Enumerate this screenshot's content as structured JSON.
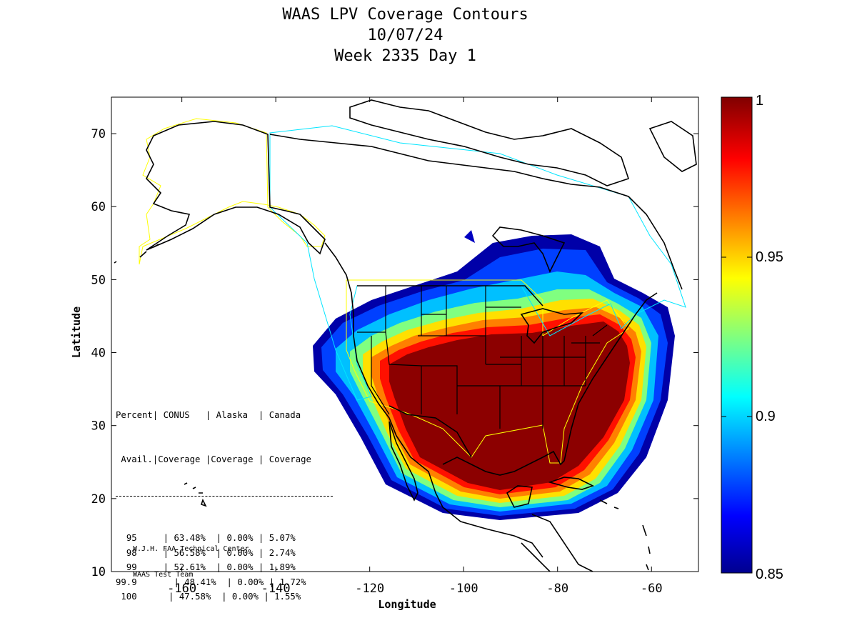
{
  "title": {
    "line1": "WAAS LPV Coverage Contours",
    "line2": "10/07/24",
    "line3": "Week 2335 Day 1"
  },
  "axes": {
    "xlabel": "Longitude",
    "ylabel": "Latitude",
    "xlim": [
      -175,
      -50
    ],
    "ylim": [
      10,
      75
    ],
    "xticks": [
      -160,
      -140,
      -120,
      -100,
      -80,
      -60
    ],
    "yticks": [
      10,
      20,
      30,
      40,
      50,
      60,
      70
    ]
  },
  "colorbar": {
    "min": 0.85,
    "max": 1,
    "tick_labels": [
      "1",
      "0.95",
      "0.9",
      "0.85"
    ],
    "colormap": "jet"
  },
  "stats_table": {
    "header1": "Percent| CONUS   | Alaska  | Canada",
    "header2": " Avail.|Coverage |Coverage | Coverage",
    "divider": "-----------------------------------------",
    "rows": [
      {
        "percent": "95",
        "conus": "63.48%",
        "alaska": "0.00%",
        "canada": "5.07%"
      },
      {
        "percent": "98",
        "conus": "56.58%",
        "alaska": "0.00%",
        "canada": "2.74%"
      },
      {
        "percent": "99",
        "conus": "52.61%",
        "alaska": "0.00%",
        "canada": "1.89%"
      },
      {
        "percent": "99.9",
        "conus": "48.41%",
        "alaska": "0.00%",
        "canada": "1.72%"
      },
      {
        "percent": "100",
        "conus": "47.58%",
        "alaska": "0.00%",
        "canada": "1.55%"
      }
    ]
  },
  "credit": {
    "line1": "W.J.H. FAA Technical Center",
    "line2": "WAAS Test Team"
  },
  "colors": {
    "land_outline": "#000000",
    "service_volume_us": "#ffff00",
    "service_volume_canada": "#00e5ff"
  }
}
